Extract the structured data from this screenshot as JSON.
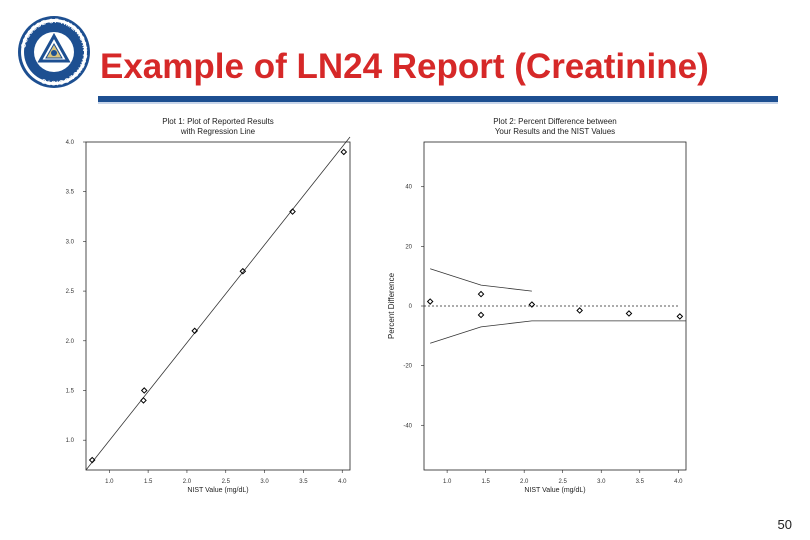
{
  "slide": {
    "title": "Example of LN24 Report (Creatinine)",
    "page_number": "50",
    "logo_text": "COLLEGE OF AMERICAN PATHOLOGISTS",
    "accent_color": "#d62828",
    "rule_color": "#1d4f91"
  },
  "chart_data": [
    {
      "type": "scatter",
      "title": "Plot 1:  Plot of Reported Results",
      "subtitle": "with Regression Line",
      "xlabel": "NIST Value (mg/dL)",
      "ylabel": "",
      "xlim": [
        0.7,
        4.1
      ],
      "ylim": [
        0.7,
        4.0
      ],
      "x_ticks": [
        "1.0",
        "1.5",
        "2.0",
        "2.5",
        "3.0",
        "3.5",
        "4.0"
      ],
      "y_ticks": [
        "1.0",
        "1.5",
        "2.0",
        "2.5",
        "3.0",
        "3.5",
        "4.0"
      ],
      "points": [
        {
          "x": 0.78,
          "y": 0.8
        },
        {
          "x": 1.44,
          "y": 1.4
        },
        {
          "x": 1.45,
          "y": 1.5
        },
        {
          "x": 2.1,
          "y": 2.1
        },
        {
          "x": 2.72,
          "y": 2.7
        },
        {
          "x": 3.36,
          "y": 3.3
        },
        {
          "x": 4.02,
          "y": 3.9
        }
      ],
      "regression_line": [
        {
          "x": 0.7,
          "y": 0.7
        },
        {
          "x": 4.1,
          "y": 4.05
        }
      ],
      "grid": false
    },
    {
      "type": "scatter",
      "title": "Plot 2:  Percent Difference between",
      "subtitle": "Your Results and the NIST Values",
      "xlabel": "NIST Value (mg/dL)",
      "ylabel": "Percent Difference",
      "xlim": [
        0.7,
        4.1
      ],
      "ylim": [
        -55,
        55
      ],
      "x_ticks": [
        "1.0",
        "1.5",
        "2.0",
        "2.5",
        "3.0",
        "3.5",
        "4.0"
      ],
      "y_ticks": [
        "40",
        "20",
        "0",
        "-20",
        "-40"
      ],
      "points": [
        {
          "x": 0.78,
          "y": 1.5
        },
        {
          "x": 1.44,
          "y": 4
        },
        {
          "x": 1.44,
          "y": -3
        },
        {
          "x": 2.1,
          "y": 0.5
        },
        {
          "x": 2.72,
          "y": -1.5
        },
        {
          "x": 3.36,
          "y": -2.5
        },
        {
          "x": 4.02,
          "y": -3.5
        }
      ],
      "upper_limit": [
        {
          "x": 0.78,
          "y": 12.5
        },
        {
          "x": 1.44,
          "y": 7
        },
        {
          "x": 2.1,
          "y": 5
        }
      ],
      "lower_limit": [
        {
          "x": 0.78,
          "y": -12.5
        },
        {
          "x": 1.44,
          "y": -7
        },
        {
          "x": 2.1,
          "y": -5
        },
        {
          "x": 4.1,
          "y": -5
        }
      ],
      "reference_line": 0,
      "grid": false
    }
  ]
}
